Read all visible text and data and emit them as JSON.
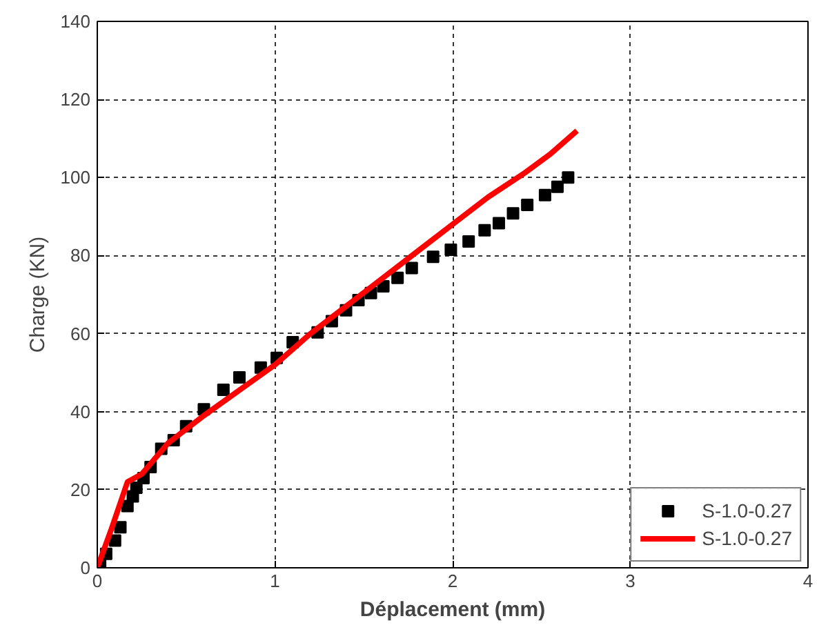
{
  "chart_data": {
    "type": "scatter",
    "xlabel": "Déplacement (mm)",
    "ylabel": "Charge (KN)",
    "xlim": [
      0,
      4
    ],
    "ylim": [
      0,
      140
    ],
    "xticks": [
      0,
      1,
      2,
      3,
      4
    ],
    "yticks": [
      0,
      20,
      40,
      60,
      80,
      100,
      120,
      140
    ],
    "grid": true,
    "legend": "bottom right",
    "series": [
      {
        "name": "S-1.0-0.27",
        "marker": "square",
        "color": "#000000",
        "x": [
          0.016,
          0.05,
          0.1,
          0.13,
          0.17,
          0.2,
          0.22,
          0.26,
          0.3,
          0.36,
          0.43,
          0.5,
          0.6,
          0.71,
          0.8,
          0.92,
          1.01,
          1.1,
          1.24,
          1.32,
          1.4,
          1.47,
          1.54,
          1.61,
          1.69,
          1.77,
          1.89,
          1.99,
          2.09,
          2.18,
          2.26,
          2.34,
          2.42,
          2.52,
          2.59,
          2.65
        ],
        "values": [
          0.7,
          3.6,
          7,
          10.4,
          15.8,
          18.3,
          20.5,
          23,
          25.8,
          30.5,
          32.7,
          36.3,
          40.6,
          45.6,
          48.8,
          51.3,
          53.8,
          57.8,
          60.3,
          63.2,
          66,
          68.6,
          70.4,
          72.1,
          74.3,
          76.8,
          79.7,
          81.5,
          83.6,
          86.5,
          88.3,
          90.8,
          93,
          95.5,
          97.6,
          100
        ]
      },
      {
        "name": "S-1.0-0.27",
        "type": "line",
        "line_style": "solid",
        "color": "#ff0000",
        "x": [
          0,
          0.08,
          0.17,
          0.25,
          0.4,
          0.6,
          0.8,
          1.0,
          1.2,
          1.4,
          1.6,
          1.8,
          2.0,
          2.2,
          2.4,
          2.55,
          2.7
        ],
        "values": [
          0,
          10,
          22,
          24,
          32,
          39,
          45.5,
          52,
          60,
          67,
          74,
          81,
          88,
          95,
          101,
          106,
          112
        ]
      }
    ]
  }
}
